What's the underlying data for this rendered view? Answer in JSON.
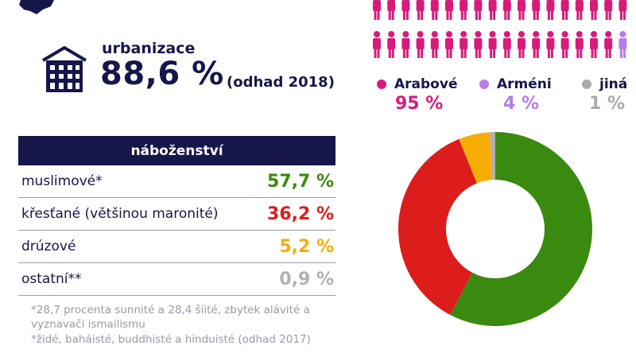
{
  "urbanization": {
    "label": "urbanizace",
    "value": "88,6 %",
    "note": "(odhad 2018)"
  },
  "ethnic": {
    "icon_rows": 2,
    "icons_per_row": 18,
    "legend": [
      {
        "label": "Arabové",
        "percent": "95 %",
        "color": "#d81b7a"
      },
      {
        "label": "Arméni",
        "percent": "4 %",
        "color": "#b87ce8"
      },
      {
        "label": "jiná",
        "percent": "1 %",
        "color": "#aaaaaa"
      }
    ]
  },
  "religion": {
    "header": "náboženství",
    "rows": [
      {
        "name": "muslimové*",
        "percent": "57,7 %",
        "value": 57.7,
        "color": "#3a8a0f"
      },
      {
        "name": "křesťané (většinou maronité)",
        "percent": "36,2 %",
        "value": 36.2,
        "color": "#dd1c1c"
      },
      {
        "name": "drúzové",
        "percent": "5,2 %",
        "value": 5.2,
        "color": "#f7ad05"
      },
      {
        "name": "ostatní**",
        "percent": "0,9 %",
        "value": 0.9,
        "color": "#b0b0b0"
      }
    ],
    "footnote1": "*28,7 procenta sunnité a 28,4 šíité, zbytek alávité a vyznavači ismailismu",
    "footnote2": "*židé, baháisté, buddhisté a hinduisté (odhad 2017)"
  },
  "chart_data": {
    "type": "pie",
    "categories": [
      "muslimové*",
      "křesťané (většinou maronité)",
      "drúzové",
      "ostatní**"
    ],
    "values": [
      57.7,
      36.2,
      5.2,
      0.9
    ],
    "colors": [
      "#3a8a0f",
      "#dd1c1c",
      "#f7ad05",
      "#b0b0b0"
    ]
  },
  "colors": {
    "navy": "#16164a",
    "gray_text": "#9a9aa6"
  }
}
